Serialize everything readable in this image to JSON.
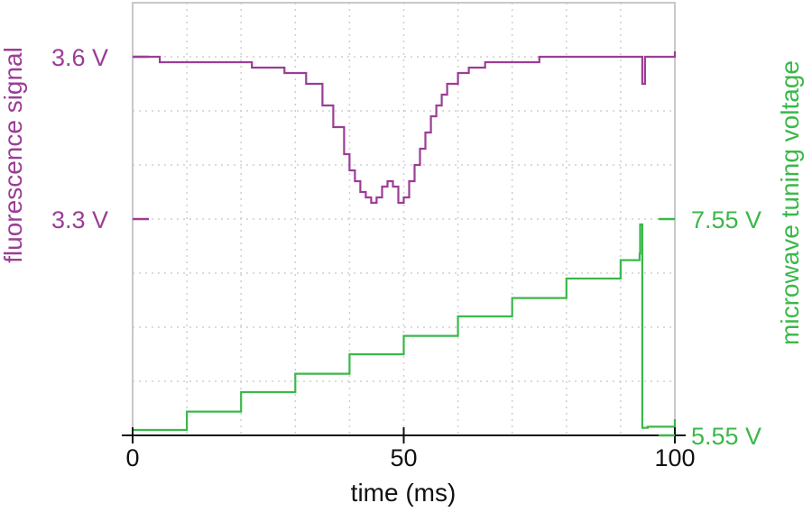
{
  "chart_data": {
    "type": "line",
    "xlabel": "time (ms)",
    "ylabel_left": "fluorescence signal",
    "ylabel_right": "microwave tuning voltage",
    "xlim": [
      0,
      100
    ],
    "x_ticks": [
      "0",
      "50",
      "100"
    ],
    "left_ticks": [
      {
        "label": "3.6 V",
        "value": 3.6
      },
      {
        "label": "3.3 V",
        "value": 3.3
      }
    ],
    "right_ticks": [
      {
        "label": "7.55 V",
        "value": 7.55
      },
      {
        "label": "5.55 V",
        "value": 5.55
      }
    ],
    "ylim_left": [
      2.9,
      3.7
    ],
    "ylim_right": [
      5.55,
      7.55
    ],
    "grid": true,
    "series": [
      {
        "name": "fluorescence signal",
        "axis": "left",
        "color": "#9b3d95",
        "x": [
          0,
          5,
          15,
          22,
          28,
          32,
          35,
          37,
          39,
          40,
          41,
          42,
          43,
          44,
          45,
          46,
          47,
          48,
          49,
          50,
          51,
          52,
          53,
          54,
          55,
          56,
          57,
          58,
          60,
          62,
          65,
          70,
          75,
          80,
          85,
          90,
          93,
          93.5,
          94,
          94.5,
          95,
          100
        ],
        "y": [
          3.6,
          3.59,
          3.59,
          3.58,
          3.57,
          3.55,
          3.51,
          3.47,
          3.42,
          3.39,
          3.37,
          3.35,
          3.34,
          3.33,
          3.34,
          3.36,
          3.37,
          3.36,
          3.33,
          3.34,
          3.37,
          3.4,
          3.43,
          3.46,
          3.49,
          3.51,
          3.53,
          3.55,
          3.57,
          3.58,
          3.59,
          3.59,
          3.6,
          3.6,
          3.6,
          3.6,
          3.6,
          3.6,
          3.55,
          3.6,
          3.6,
          3.61
        ]
      },
      {
        "name": "microwave tuning voltage",
        "axis": "right",
        "color": "#3bb84a",
        "x": [
          0,
          10,
          20,
          30,
          40,
          50,
          60,
          70,
          80,
          90,
          93.5,
          93.6,
          93.8,
          94,
          95,
          100
        ],
        "y": [
          5.6,
          5.77,
          5.95,
          6.12,
          6.3,
          6.47,
          6.65,
          6.82,
          7.0,
          7.17,
          7.23,
          7.5,
          7.5,
          5.62,
          5.63,
          5.7
        ]
      }
    ]
  }
}
